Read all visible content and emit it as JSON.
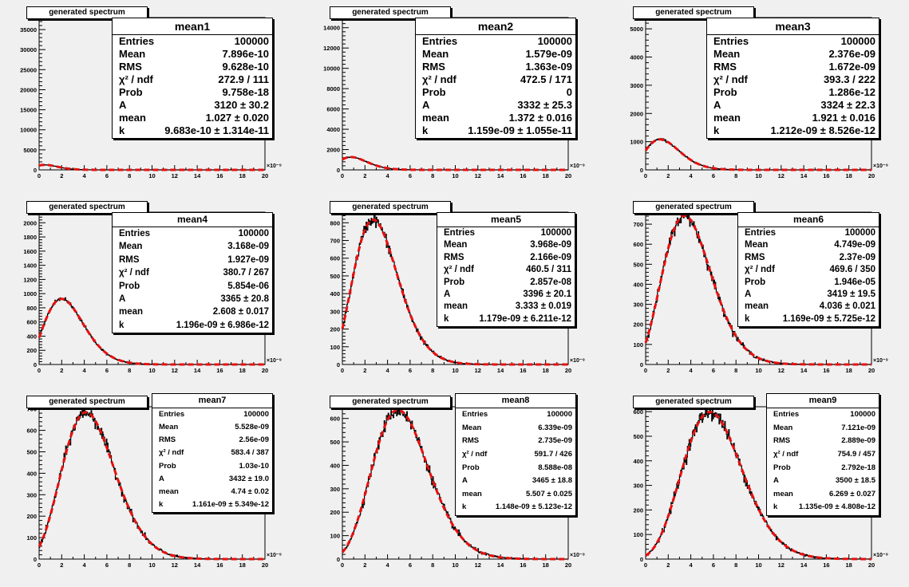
{
  "common": {
    "pad_title": "generated spectrum",
    "x_multiplier": "×10⁻⁹",
    "x_ticks": [
      "0",
      "2",
      "4",
      "6",
      "8",
      "10",
      "12",
      "14",
      "16",
      "18",
      "20"
    ],
    "colors": {
      "hist": "#000000",
      "fit": "#e8100f",
      "pad": "#f0f0f0"
    }
  },
  "chart_data": [
    {
      "type": "histogram",
      "title": "mean1",
      "xlim": [
        0,
        20
      ],
      "ylim": [
        0,
        38000
      ],
      "y_ticks": [
        0,
        5000,
        10000,
        15000,
        20000,
        25000,
        30000,
        35000
      ],
      "stats": [
        [
          "Entries",
          "100000"
        ],
        [
          "Mean",
          "7.896e-10"
        ],
        [
          "RMS",
          "9.628e-10"
        ],
        [
          "χ² / ndf",
          "272.9 / 111"
        ],
        [
          "Prob",
          "9.758e-18"
        ],
        [
          "A",
          "3120 ± 30.2"
        ],
        [
          "mean",
          "1.027 ± 0.020"
        ],
        [
          "k",
          "9.683e-10 ± 1.314e-11"
        ]
      ],
      "fit": {
        "A": 3120,
        "mean": 1.027,
        "k": 0.9683
      }
    },
    {
      "type": "histogram",
      "title": "mean2",
      "xlim": [
        0,
        20
      ],
      "ylim": [
        0,
        15000
      ],
      "y_ticks": [
        0,
        2000,
        4000,
        6000,
        8000,
        10000,
        12000,
        14000
      ],
      "stats": [
        [
          "Entries",
          "100000"
        ],
        [
          "Mean",
          "1.579e-09"
        ],
        [
          "RMS",
          "1.363e-09"
        ],
        [
          "χ² / ndf",
          "472.5 / 171"
        ],
        [
          "Prob",
          "0"
        ],
        [
          "A",
          "3332 ± 25.3"
        ],
        [
          "mean",
          "1.372 ± 0.016"
        ],
        [
          "k",
          "1.159e-09 ± 1.055e-11"
        ]
      ],
      "fit": {
        "A": 3332,
        "mean": 1.372,
        "k": 1.159
      }
    },
    {
      "type": "histogram",
      "title": "mean3",
      "xlim": [
        0,
        20
      ],
      "ylim": [
        0,
        5400
      ],
      "y_ticks": [
        0,
        1000,
        2000,
        3000,
        4000,
        5000
      ],
      "stats": [
        [
          "Entries",
          "100000"
        ],
        [
          "Mean",
          "2.376e-09"
        ],
        [
          "RMS",
          "1.672e-09"
        ],
        [
          "χ² / ndf",
          "393.3 / 222"
        ],
        [
          "Prob",
          "1.286e-12"
        ],
        [
          "A",
          "3324 ± 22.3"
        ],
        [
          "mean",
          "1.921 ± 0.016"
        ],
        [
          "k",
          "1.212e-09 ± 8.526e-12"
        ]
      ],
      "fit": {
        "A": 3324,
        "mean": 1.921,
        "k": 1.212
      }
    },
    {
      "type": "histogram",
      "title": "mean4",
      "xlim": [
        0,
        20
      ],
      "ylim": [
        0,
        2150
      ],
      "y_ticks": [
        0,
        200,
        400,
        600,
        800,
        1000,
        1200,
        1400,
        1600,
        1800,
        2000
      ],
      "stats": [
        [
          "Entries",
          "100000"
        ],
        [
          "Mean",
          "3.168e-09"
        ],
        [
          "RMS",
          "1.927e-09"
        ],
        [
          "χ² / ndf",
          "380.7 / 267"
        ],
        [
          "Prob",
          "5.854e-06"
        ],
        [
          "A",
          "3365 ± 20.8"
        ],
        [
          "mean",
          "2.608 ± 0.017"
        ],
        [
          "k",
          "1.196e-09 ± 6.986e-12"
        ]
      ],
      "fit": {
        "A": 3365,
        "mean": 2.608,
        "k": 1.196
      }
    },
    {
      "type": "histogram",
      "title": "mean5",
      "xlim": [
        0,
        20
      ],
      "ylim": [
        0,
        860
      ],
      "y_ticks": [
        0,
        100,
        200,
        300,
        400,
        500,
        600,
        700,
        800
      ],
      "stats": [
        [
          "Entries",
          "100000"
        ],
        [
          "Mean",
          "3.968e-09"
        ],
        [
          "RMS",
          "2.166e-09"
        ],
        [
          "χ² / ndf",
          "460.5 / 311"
        ],
        [
          "Prob",
          "2.857e-08"
        ],
        [
          "A",
          "3396 ± 20.1"
        ],
        [
          "mean",
          "3.333 ± 0.019"
        ],
        [
          "k",
          "1.179e-09 ± 6.211e-12"
        ]
      ],
      "fit": {
        "A": 3396,
        "mean": 3.333,
        "k": 1.179
      }
    },
    {
      "type": "histogram",
      "title": "mean6",
      "xlim": [
        0,
        20
      ],
      "ylim": [
        0,
        760
      ],
      "y_ticks": [
        0,
        100,
        200,
        300,
        400,
        500,
        600,
        700
      ],
      "stats": [
        [
          "Entries",
          "100000"
        ],
        [
          "Mean",
          "4.749e-09"
        ],
        [
          "RMS",
          "2.37e-09"
        ],
        [
          "χ² / ndf",
          "469.6 / 350"
        ],
        [
          "Prob",
          "1.946e-05"
        ],
        [
          "A",
          "3419 ± 19.5"
        ],
        [
          "mean",
          "4.036 ± 0.021"
        ],
        [
          "k",
          "1.169e-09 ± 5.725e-12"
        ]
      ],
      "fit": {
        "A": 3419,
        "mean": 4.036,
        "k": 1.169
      }
    },
    {
      "type": "histogram",
      "title": "mean7",
      "xlim": [
        0,
        20
      ],
      "ylim": [
        0,
        710
      ],
      "y_ticks": [
        0,
        100,
        200,
        300,
        400,
        500,
        600,
        700
      ],
      "stats": [
        [
          "Entries",
          "100000"
        ],
        [
          "Mean",
          "5.528e-09"
        ],
        [
          "RMS",
          "2.56e-09"
        ],
        [
          "χ² / ndf",
          "583.4 / 387"
        ],
        [
          "Prob",
          "1.03e-10"
        ],
        [
          "A",
          "3432 ± 19.0"
        ],
        [
          "mean",
          "4.74 ± 0.02"
        ],
        [
          "k",
          "1.161e-09 ± 5.349e-12"
        ]
      ],
      "fit": {
        "A": 3432,
        "mean": 4.74,
        "k": 1.161
      }
    },
    {
      "type": "histogram",
      "title": "mean8",
      "xlim": [
        0,
        20
      ],
      "ylim": [
        0,
        650
      ],
      "y_ticks": [
        0,
        100,
        200,
        300,
        400,
        500,
        600
      ],
      "stats": [
        [
          "Entries",
          "100000"
        ],
        [
          "Mean",
          "6.339e-09"
        ],
        [
          "RMS",
          "2.735e-09"
        ],
        [
          "χ² / ndf",
          "591.7 / 426"
        ],
        [
          "Prob",
          "8.588e-08"
        ],
        [
          "A",
          "3465 ± 18.8"
        ],
        [
          "mean",
          "5.507 ± 0.025"
        ],
        [
          "k",
          "1.148e-09 ± 5.123e-12"
        ]
      ],
      "fit": {
        "A": 3465,
        "mean": 5.507,
        "k": 1.148
      }
    },
    {
      "type": "histogram",
      "title": "mean9",
      "xlim": [
        0,
        20
      ],
      "ylim": [
        0,
        620
      ],
      "y_ticks": [
        0,
        100,
        200,
        300,
        400,
        500,
        600
      ],
      "stats": [
        [
          "Entries",
          "100000"
        ],
        [
          "Mean",
          "7.121e-09"
        ],
        [
          "RMS",
          "2.889e-09"
        ],
        [
          "χ² / ndf",
          "754.9 / 457"
        ],
        [
          "Prob",
          "2.792e-18"
        ],
        [
          "A",
          "3500 ± 18.5"
        ],
        [
          "mean",
          "6.269 ± 0.027"
        ],
        [
          "k",
          "1.135e-09 ± 4.808e-12"
        ]
      ],
      "fit": {
        "A": 3500,
        "mean": 6.269,
        "k": 1.135
      }
    }
  ]
}
